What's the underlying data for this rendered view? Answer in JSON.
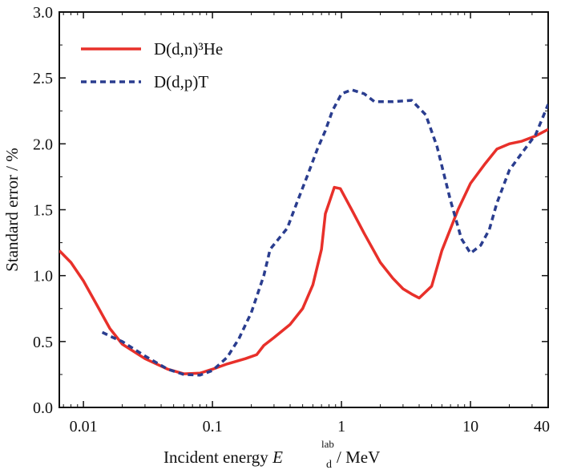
{
  "chart_data": {
    "type": "line",
    "x_scale": "log",
    "xlim": [
      0.0065,
      40
    ],
    "ylim": [
      0.0,
      3.0
    ],
    "xlabel": {
      "prefix": "Incident energy ",
      "symbol": "E",
      "subscript": "d",
      "superscript": "lab",
      "suffix": " / MeV"
    },
    "ylabel": "Standard error / %",
    "x_ticks": [
      {
        "value": 0.01,
        "label": "0.01"
      },
      {
        "value": 0.1,
        "label": "0.1"
      },
      {
        "value": 1,
        "label": "1"
      },
      {
        "value": 10,
        "label": "10"
      },
      {
        "value": 40,
        "label": "40"
      }
    ],
    "y_ticks": [
      {
        "value": 0.0,
        "label": "0.0"
      },
      {
        "value": 0.5,
        "label": "0.5"
      },
      {
        "value": 1.0,
        "label": "1.0"
      },
      {
        "value": 1.5,
        "label": "1.5"
      },
      {
        "value": 2.0,
        "label": "2.0"
      },
      {
        "value": 2.5,
        "label": "2.5"
      },
      {
        "value": 3.0,
        "label": "3.0"
      }
    ],
    "grid": false,
    "legend_position": "top-left",
    "series": [
      {
        "name": "D(d,n)³He",
        "color": "#e8302a",
        "style": "solid",
        "points": [
          [
            0.0065,
            1.19
          ],
          [
            0.008,
            1.1
          ],
          [
            0.01,
            0.96
          ],
          [
            0.013,
            0.76
          ],
          [
            0.016,
            0.6
          ],
          [
            0.02,
            0.48
          ],
          [
            0.03,
            0.37
          ],
          [
            0.045,
            0.29
          ],
          [
            0.06,
            0.255
          ],
          [
            0.08,
            0.26
          ],
          [
            0.1,
            0.29
          ],
          [
            0.13,
            0.33
          ],
          [
            0.18,
            0.37
          ],
          [
            0.22,
            0.4
          ],
          [
            0.25,
            0.47
          ],
          [
            0.3,
            0.53
          ],
          [
            0.4,
            0.63
          ],
          [
            0.5,
            0.75
          ],
          [
            0.6,
            0.93
          ],
          [
            0.7,
            1.2
          ],
          [
            0.75,
            1.47
          ],
          [
            0.8,
            1.55
          ],
          [
            0.88,
            1.67
          ],
          [
            0.98,
            1.66
          ],
          [
            1.2,
            1.5
          ],
          [
            1.5,
            1.32
          ],
          [
            2.0,
            1.1
          ],
          [
            2.5,
            0.98
          ],
          [
            3.0,
            0.9
          ],
          [
            3.5,
            0.86
          ],
          [
            4.0,
            0.83
          ],
          [
            5.0,
            0.92
          ],
          [
            6.0,
            1.19
          ],
          [
            8.0,
            1.5
          ],
          [
            10.0,
            1.7
          ],
          [
            13.0,
            1.85
          ],
          [
            16.0,
            1.96
          ],
          [
            20.0,
            2.0
          ],
          [
            25.0,
            2.02
          ],
          [
            32.0,
            2.06
          ],
          [
            40.0,
            2.11
          ]
        ]
      },
      {
        "name": "D(d,p)T",
        "color": "#2a3d8f",
        "style": "dashed",
        "points": [
          [
            0.014,
            0.57
          ],
          [
            0.017,
            0.53
          ],
          [
            0.02,
            0.5
          ],
          [
            0.03,
            0.39
          ],
          [
            0.045,
            0.29
          ],
          [
            0.06,
            0.25
          ],
          [
            0.08,
            0.245
          ],
          [
            0.1,
            0.28
          ],
          [
            0.13,
            0.38
          ],
          [
            0.16,
            0.52
          ],
          [
            0.2,
            0.72
          ],
          [
            0.25,
            1.0
          ],
          [
            0.28,
            1.2
          ],
          [
            0.32,
            1.27
          ],
          [
            0.38,
            1.36
          ],
          [
            0.45,
            1.55
          ],
          [
            0.55,
            1.77
          ],
          [
            0.65,
            1.96
          ],
          [
            0.75,
            2.1
          ],
          [
            0.85,
            2.25
          ],
          [
            1.0,
            2.38
          ],
          [
            1.2,
            2.41
          ],
          [
            1.5,
            2.38
          ],
          [
            1.8,
            2.32
          ],
          [
            2.5,
            2.32
          ],
          [
            3.5,
            2.33
          ],
          [
            4.5,
            2.22
          ],
          [
            5.5,
            1.98
          ],
          [
            7.0,
            1.57
          ],
          [
            8.5,
            1.28
          ],
          [
            10.0,
            1.17
          ],
          [
            12.0,
            1.23
          ],
          [
            14.0,
            1.35
          ],
          [
            16.0,
            1.55
          ],
          [
            20.0,
            1.8
          ],
          [
            25.0,
            1.93
          ],
          [
            32.0,
            2.07
          ],
          [
            40.0,
            2.3
          ]
        ]
      }
    ]
  }
}
